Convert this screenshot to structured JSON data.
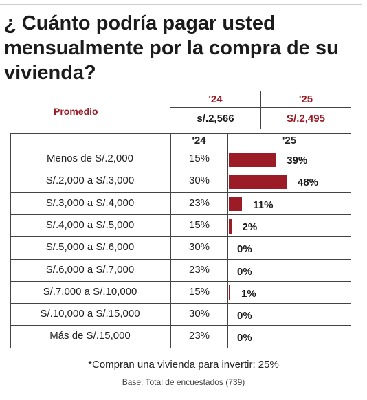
{
  "title": "¿ Cuánto podría pagar usted mensualmente por la compra de su vivienda?",
  "average": {
    "label": "Promedio",
    "year_a": "'24",
    "year_b": "'25",
    "value_a": "s/.2,566",
    "value_b": "S/.2,495"
  },
  "chart_data": {
    "type": "bar",
    "title": "¿ Cuánto podría pagar usted mensualmente por la compra de su vivienda?",
    "header_24": "'24",
    "header_25": "'25",
    "categories": [
      "Menos de S/.2,000",
      "S/.2,000 a S/.3,000",
      "S/.3,000 a S/.4,000",
      "S/.4,000 a S/.5,000",
      "S/.5,000 a S/.6,000",
      "S/.6,000 a S/.7,000",
      "S/.7,000 a S/.10,000",
      "S/.10,000 a S/.15,000",
      "Más de S/.15,000"
    ],
    "series": [
      {
        "name": "'24",
        "values": [
          15,
          30,
          23,
          15,
          30,
          23,
          15,
          30,
          23
        ],
        "labels": [
          "15%",
          "30%",
          "23%",
          "15%",
          "30%",
          "23%",
          "15%",
          "30%",
          "23%"
        ]
      },
      {
        "name": "'25",
        "values": [
          39,
          48,
          11,
          2,
          0,
          0,
          1,
          0,
          0
        ],
        "labels": [
          "39%",
          "48%",
          "11%",
          "2%",
          "0%",
          "0%",
          "1%",
          "0%",
          "0%"
        ]
      }
    ],
    "colors": {
      "bar": "#9b1c27"
    }
  },
  "footnote": "*Compran una vivienda para invertir: 25%",
  "base": "Base: Total de encuestados (739)"
}
